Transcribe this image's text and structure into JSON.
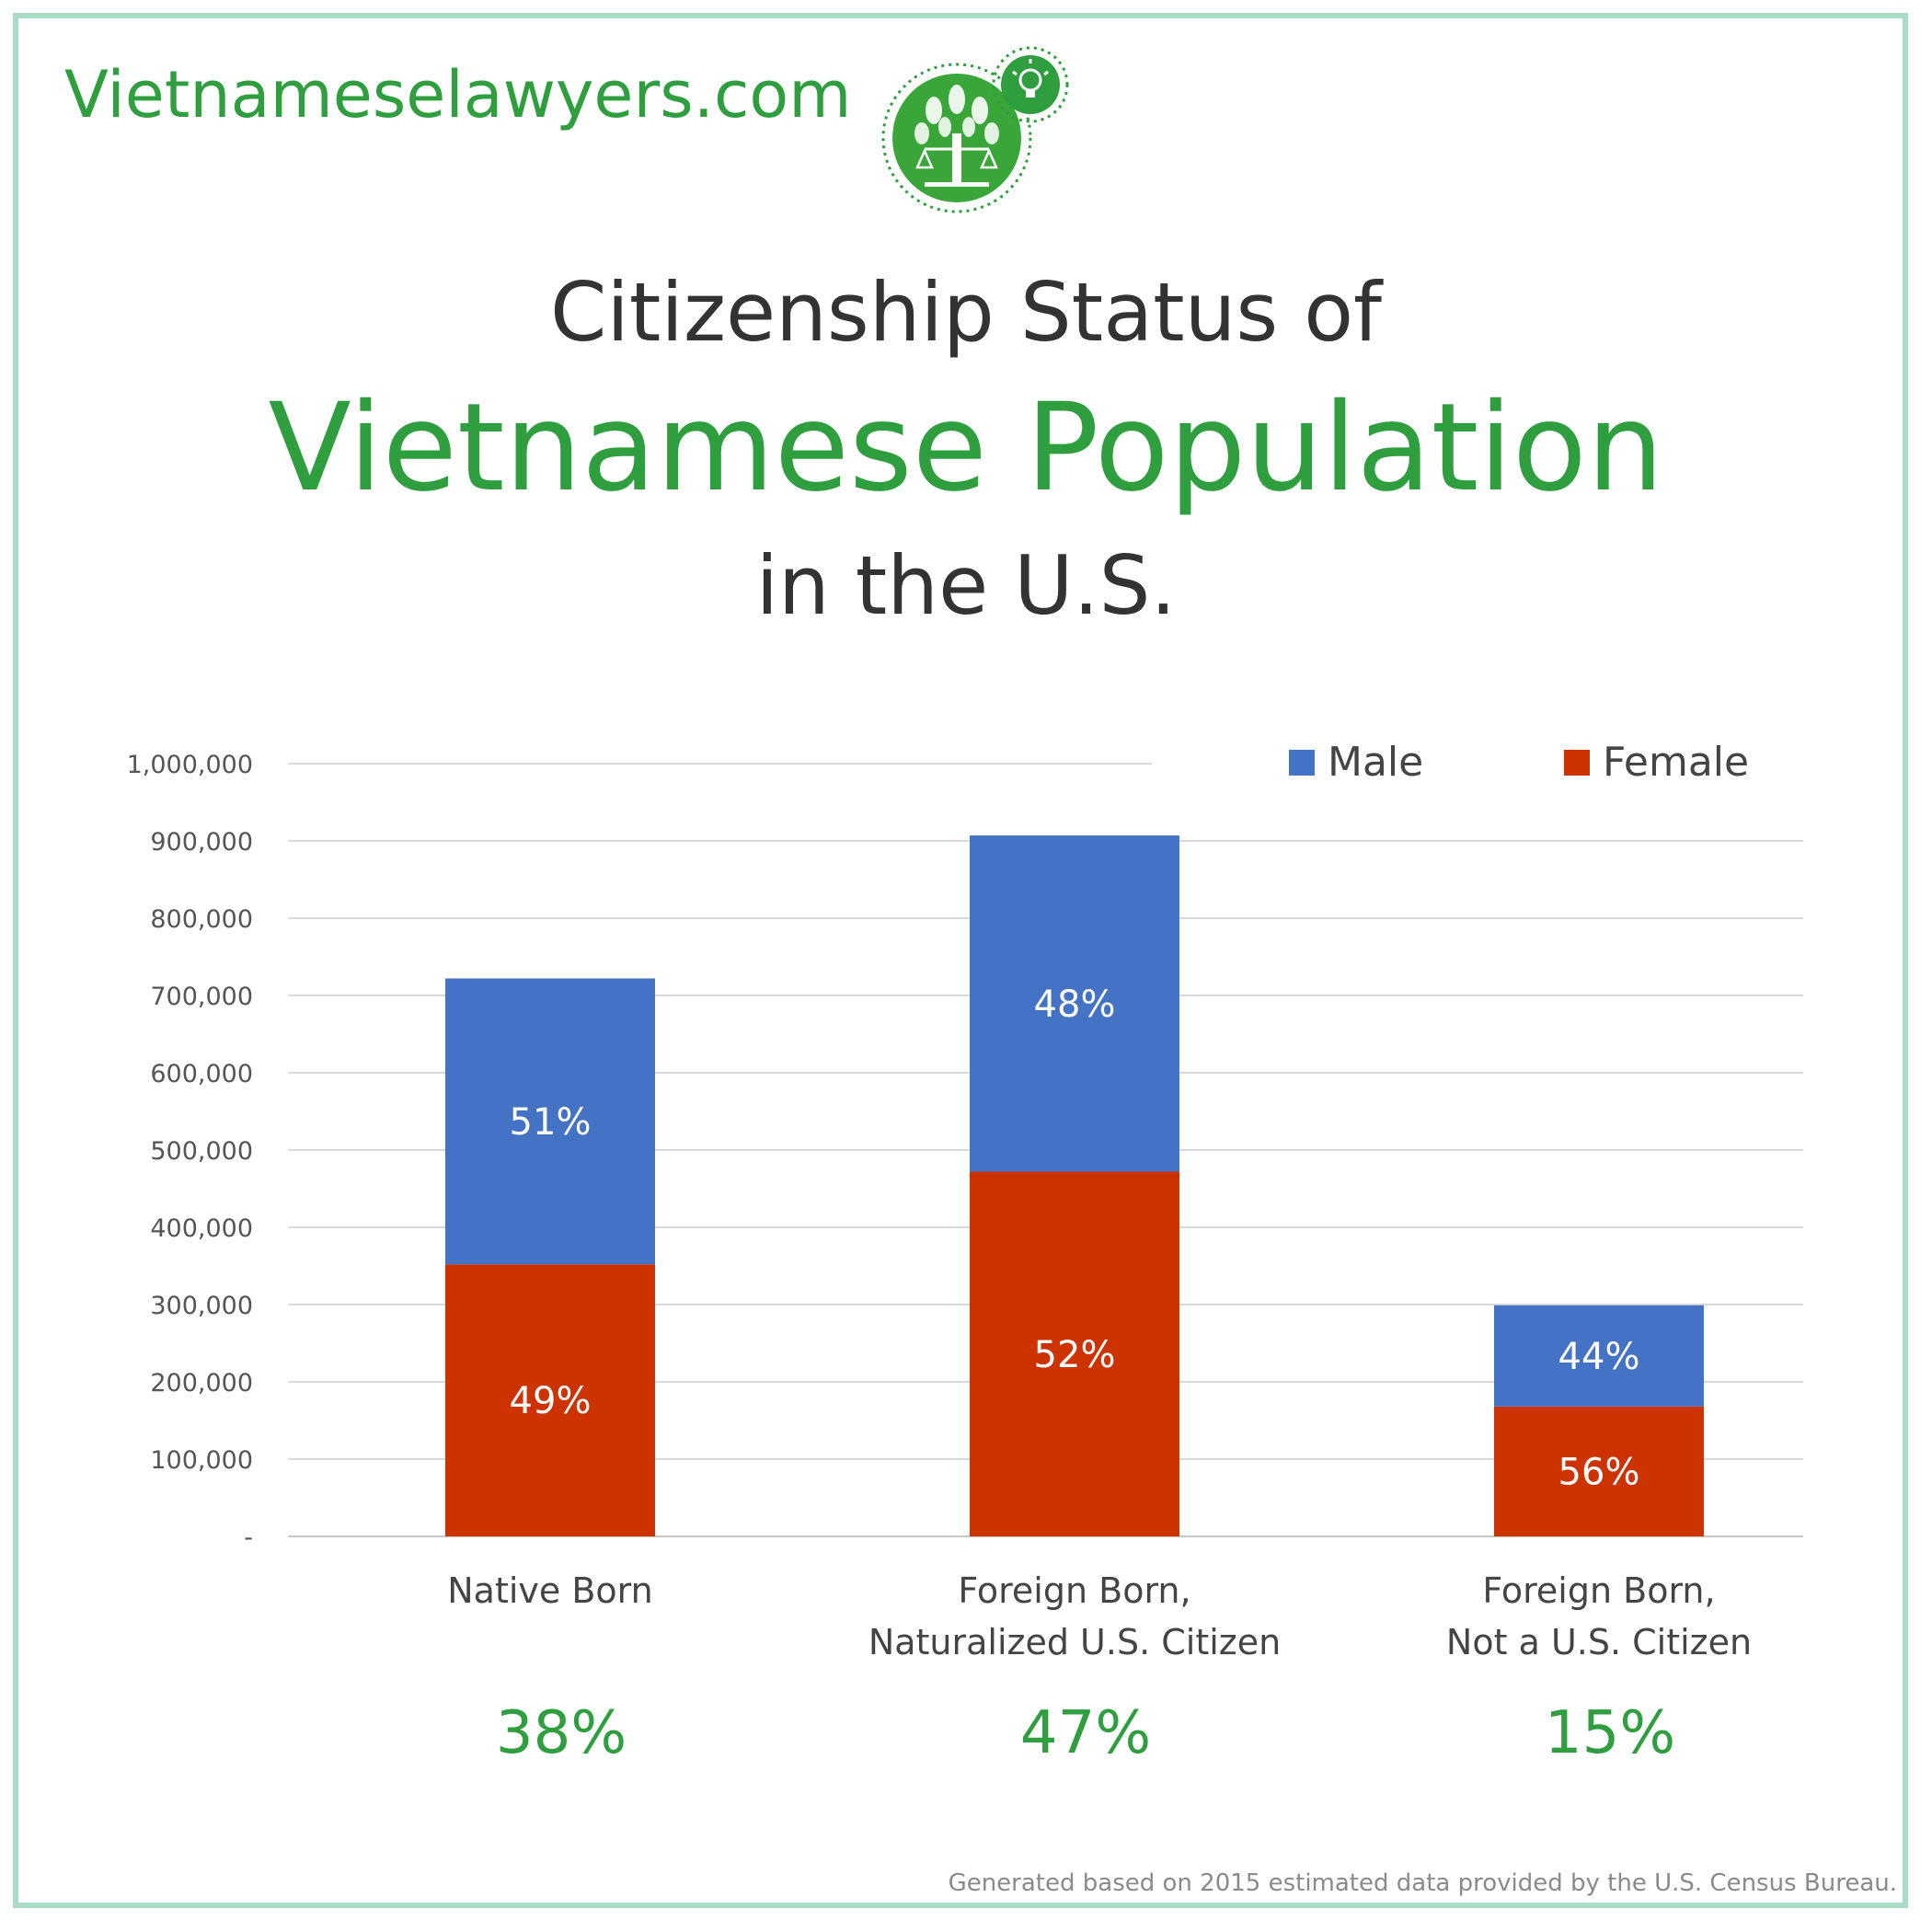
{
  "site": {
    "name": "Vietnameselawyers.com"
  },
  "logo": {
    "icon": "tree-scales-lightbulb-icon",
    "brand_color": "#2e9e3e"
  },
  "title": {
    "line1": "Citizenship Status of",
    "line2": "Vietnamese Population",
    "line3": "in the U.S."
  },
  "chart_data": {
    "type": "bar",
    "stacked": true,
    "categories": [
      [
        "Native Born"
      ],
      [
        "Foreign Born,",
        "Naturalized U.S. Citizen"
      ],
      [
        "Foreign Born,",
        "Not a U.S. Citizen"
      ]
    ],
    "series": [
      {
        "name": "Female",
        "color": "#cc3300",
        "values": [
          352000,
          472000,
          168000
        ],
        "labels": [
          "49%",
          "52%",
          "56%"
        ]
      },
      {
        "name": "Male",
        "color": "#4472c4",
        "values": [
          370000,
          435000,
          131000
        ],
        "labels": [
          "51%",
          "48%",
          "44%"
        ]
      }
    ],
    "category_shares": [
      "38%",
      "47%",
      "15%"
    ],
    "ylim": [
      0,
      1000000
    ],
    "yticks": [
      {
        "value": 0,
        "label": "-"
      },
      {
        "value": 100000,
        "label": "100,000"
      },
      {
        "value": 200000,
        "label": "200,000"
      },
      {
        "value": 300000,
        "label": "300,000"
      },
      {
        "value": 400000,
        "label": "400,000"
      },
      {
        "value": 500000,
        "label": "500,000"
      },
      {
        "value": 600000,
        "label": "600,000"
      },
      {
        "value": 700000,
        "label": "700,000"
      },
      {
        "value": 800000,
        "label": "800,000"
      },
      {
        "value": 900000,
        "label": "900,000"
      },
      {
        "value": 1000000,
        "label": "1,000,000"
      }
    ],
    "grid": true,
    "legend": {
      "position": "top-right",
      "order": [
        "Male",
        "Female"
      ]
    },
    "xlabel": "",
    "ylabel": ""
  },
  "footnote": "Generated based on 2015 estimated data provided by the U.S. Census Bureau."
}
